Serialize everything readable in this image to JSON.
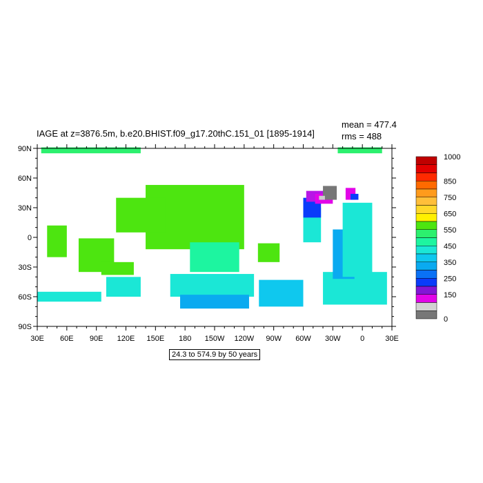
{
  "title": "IAGE at z=3876.5m, b.e20.BHIST.f09_g17.20thC.151_01 [1895-1914]",
  "stats": {
    "mean": "mean = 477.4",
    "rms": "rms = 488"
  },
  "range_label": "24.3 to 574.9 by 50 years",
  "map": {
    "projection": "cylindrical-equidistant",
    "lon_ticks": [
      "30E",
      "60E",
      "90E",
      "120E",
      "150E",
      "180",
      "150W",
      "120W",
      "90W",
      "60W",
      "30W",
      "0",
      "30E"
    ],
    "lat_ticks": [
      "90N",
      "60N",
      "30N",
      "0",
      "30S",
      "60S",
      "90S"
    ],
    "lon_values": [
      30,
      60,
      90,
      120,
      150,
      180,
      210,
      240,
      270,
      300,
      330,
      360,
      390
    ],
    "lat_values": [
      90,
      60,
      30,
      0,
      -30,
      -60,
      -90
    ],
    "blobs": [
      {
        "lon": [
          34,
          135
        ],
        "lat": [
          85,
          91
        ],
        "color": "#2cf06e"
      },
      {
        "lon": [
          335,
          380
        ],
        "lat": [
          85,
          91
        ],
        "color": "#2cf06e"
      },
      {
        "lon": [
          140,
          240
        ],
        "lat": [
          -12,
          53
        ],
        "color": "#4de510"
      },
      {
        "lon": [
          110,
          160
        ],
        "lat": [
          5,
          40
        ],
        "color": "#4de510"
      },
      {
        "lon": [
          72,
          108
        ],
        "lat": [
          -35,
          -1
        ],
        "color": "#4de510"
      },
      {
        "lon": [
          40,
          60
        ],
        "lat": [
          -20,
          12
        ],
        "color": "#4de510"
      },
      {
        "lon": [
          95,
          128
        ],
        "lat": [
          -38,
          -25
        ],
        "color": "#4de510"
      },
      {
        "lon": [
          254,
          276
        ],
        "lat": [
          -25,
          -6
        ],
        "color": "#4de510"
      },
      {
        "lon": [
          185,
          235
        ],
        "lat": [
          -35,
          -5
        ],
        "color": "#1df5a0"
      },
      {
        "lon": [
          165,
          250
        ],
        "lat": [
          -60,
          -37
        ],
        "color": "#1be7d6"
      },
      {
        "lon": [
          30,
          95
        ],
        "lat": [
          -65,
          -55
        ],
        "color": "#1be7d6"
      },
      {
        "lon": [
          100,
          135
        ],
        "lat": [
          -60,
          -40
        ],
        "color": "#1be7d6"
      },
      {
        "lon": [
          255,
          300
        ],
        "lat": [
          -70,
          -43
        ],
        "color": "#0fc8ee"
      },
      {
        "lon": [
          175,
          245
        ],
        "lat": [
          -72,
          -58
        ],
        "color": "#0aaaf0"
      },
      {
        "lon": [
          320,
          385
        ],
        "lat": [
          -68,
          -35
        ],
        "color": "#1be7d6"
      },
      {
        "lon": [
          330,
          352
        ],
        "lat": [
          -42,
          8
        ],
        "color": "#0aaaf0"
      },
      {
        "lon": [
          340,
          370
        ],
        "lat": [
          -40,
          35
        ],
        "color": "#1be7d6"
      },
      {
        "lon": [
          300,
          318
        ],
        "lat": [
          -5,
          30
        ],
        "color": "#1be7d6"
      },
      {
        "lon": [
          300,
          318
        ],
        "lat": [
          20,
          40
        ],
        "color": "#0a3cfa"
      },
      {
        "lon": [
          303,
          323
        ],
        "lat": [
          36,
          47
        ],
        "color": "#b716e6"
      },
      {
        "lon": [
          312,
          330
        ],
        "lat": [
          34,
          44
        ],
        "color": "#e205e8"
      },
      {
        "lon": [
          320,
          334
        ],
        "lat": [
          38,
          52
        ],
        "color": "#777777"
      },
      {
        "lon": [
          316,
          322
        ],
        "lat": [
          38,
          42
        ],
        "color": "#cccccc"
      },
      {
        "lon": [
          343,
          353
        ],
        "lat": [
          38,
          50
        ],
        "color": "#e205e8"
      },
      {
        "lon": [
          348,
          356
        ],
        "lat": [
          38,
          44
        ],
        "color": "#0a3cfa"
      }
    ]
  },
  "colorbar": {
    "labels": [
      "1000",
      "850",
      "750",
      "650",
      "550",
      "450",
      "350",
      "250",
      "150",
      "0"
    ],
    "colors": [
      "#c00000",
      "#e30000",
      "#ff2a00",
      "#ff6a00",
      "#ff9b1c",
      "#ffbf3a",
      "#ffd82a",
      "#fff000",
      "#4de510",
      "#2cf06e",
      "#1df5a0",
      "#1be7d6",
      "#0fc8ee",
      "#0aaaf0",
      "#0a71f5",
      "#0a3cfa",
      "#8216d6",
      "#e205e8",
      "#d2d2d2",
      "#777777"
    ]
  }
}
